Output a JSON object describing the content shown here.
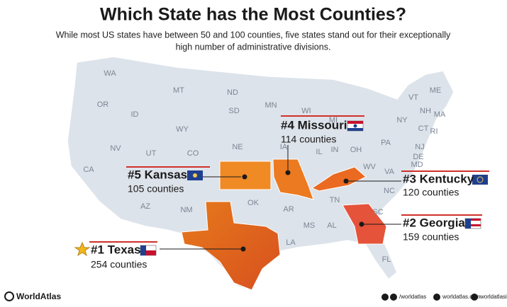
{
  "header": {
    "title": "Which State has the Most Counties?",
    "subtitle": [
      "While most US states have between 50 and 100 counties, five states stand out for their exceptionally",
      "high number of administrative divisions."
    ]
  },
  "map": {
    "state_labels": [
      "WA",
      "MT",
      "ND",
      "MN",
      "ME",
      "OR",
      "ID",
      "SD",
      "WI",
      "MI",
      "VT",
      "NH",
      "MA",
      "NY",
      "CT",
      "RI",
      "WY",
      "IA",
      "NE",
      "PA",
      "NJ",
      "DE",
      "MD",
      "NV",
      "UT",
      "IL",
      "IN",
      "OH",
      "WV",
      "VA",
      "CA",
      "CO",
      "NC",
      "AZ",
      "NM",
      "OK",
      "AR",
      "TN",
      "SC",
      "MS",
      "AL",
      "LA",
      "FL"
    ]
  },
  "callouts": [
    {
      "rank": "#1 Texas",
      "counties": "254 counties"
    },
    {
      "rank": "#2 Georgia",
      "counties": "159 counties"
    },
    {
      "rank": "#3 Kentucky",
      "counties": "120 counties"
    },
    {
      "rank": "#4 Missouri",
      "counties": "114 counties"
    },
    {
      "rank": "#5 Kansas",
      "counties": "105 counties"
    }
  ],
  "footer": {
    "brand": "WorldAtlas",
    "social": [
      "/worldatlas",
      "worldatlas.com",
      "worldatlasig"
    ]
  }
}
